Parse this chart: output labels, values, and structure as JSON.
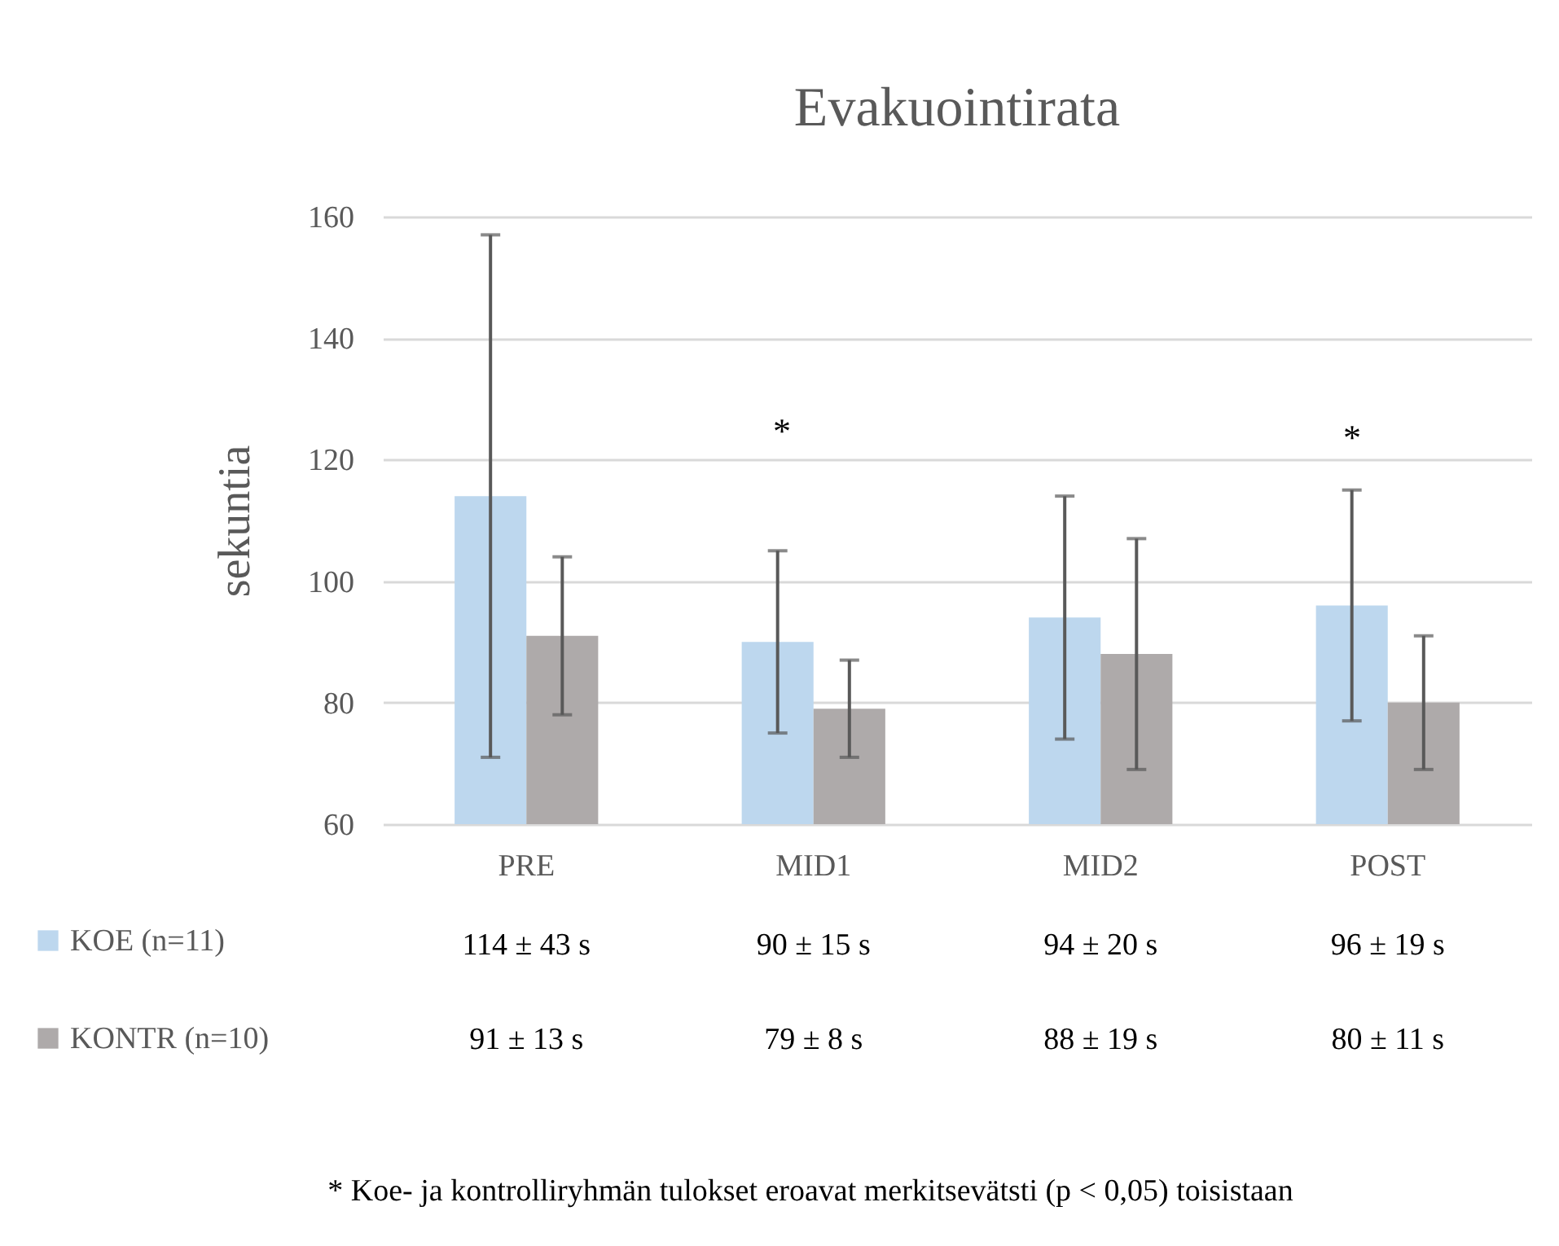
{
  "chart_data": {
    "type": "bar",
    "title": "Evakuointirata",
    "ylabel": "sekuntia",
    "categories": [
      "PRE",
      "MID1",
      "MID2",
      "POST"
    ],
    "series": [
      {
        "name": "KOE (n=11)",
        "color": "#bdd7ee",
        "values": [
          114,
          90,
          94,
          96
        ],
        "errors": [
          43,
          15,
          20,
          19
        ],
        "value_labels": [
          "114 ± 43 s",
          "90 ± 15 s",
          "94 ± 20 s",
          "96 ± 19 s"
        ]
      },
      {
        "name": "KONTR (n=10)",
        "color": "#aeaaaa",
        "values": [
          91,
          79,
          88,
          80
        ],
        "errors": [
          13,
          8,
          19,
          11
        ],
        "value_labels": [
          "91 ± 13 s",
          "79 ± 8 s",
          "88 ± 19 s",
          "80 ± 11 s"
        ]
      }
    ],
    "ylim": [
      60,
      160
    ],
    "yticks": [
      60,
      80,
      100,
      120,
      140,
      160
    ],
    "grid": "y",
    "legend": "bottom left",
    "annotations": [
      "*",
      "*",
      "* Koe- ja kontrolliryhmän  tulokset eroavat merkitsevätsti  (p < 0,05) toisistaan"
    ]
  }
}
